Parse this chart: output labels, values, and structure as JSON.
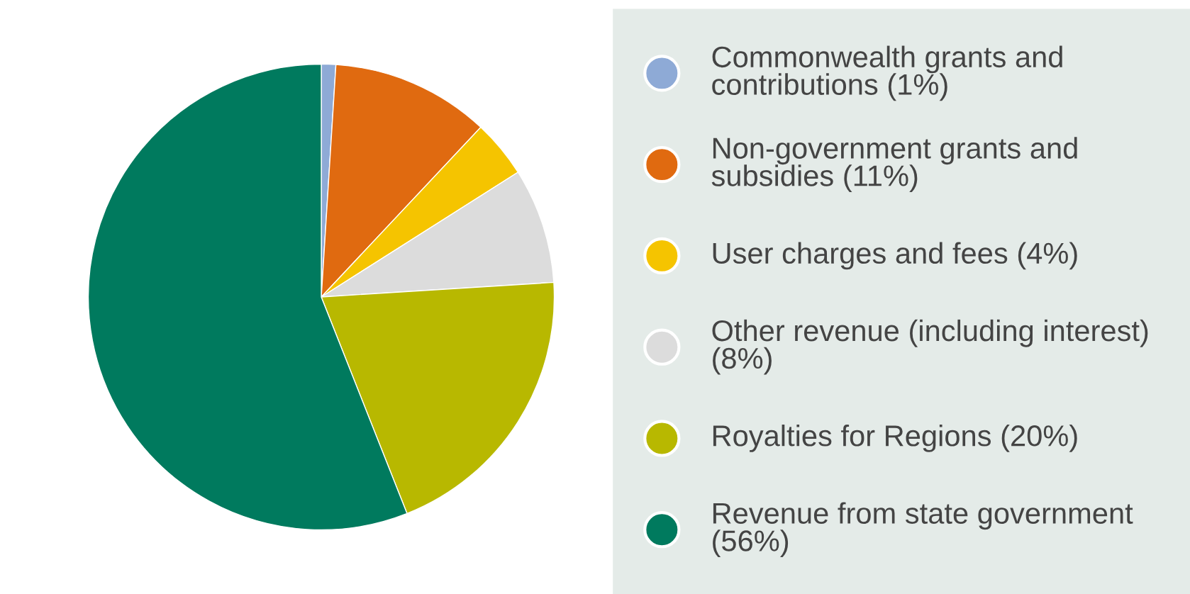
{
  "chart_data": {
    "type": "pie",
    "categories": [
      "Commonwealth grants and contributions (1%)",
      "Non-government grants and subsidies (11%)",
      "User charges and fees (4%)",
      "Other revenue (including interest) (8%)",
      "Royalties for Regions (20%)",
      "Revenue from state government (56%)"
    ],
    "values": [
      1,
      11,
      4,
      8,
      20,
      56
    ],
    "colors": [
      "#8eaad6",
      "#e06a10",
      "#f5c400",
      "#dcdcdc",
      "#b8b800",
      "#007a5e"
    ],
    "legend": "right"
  }
}
